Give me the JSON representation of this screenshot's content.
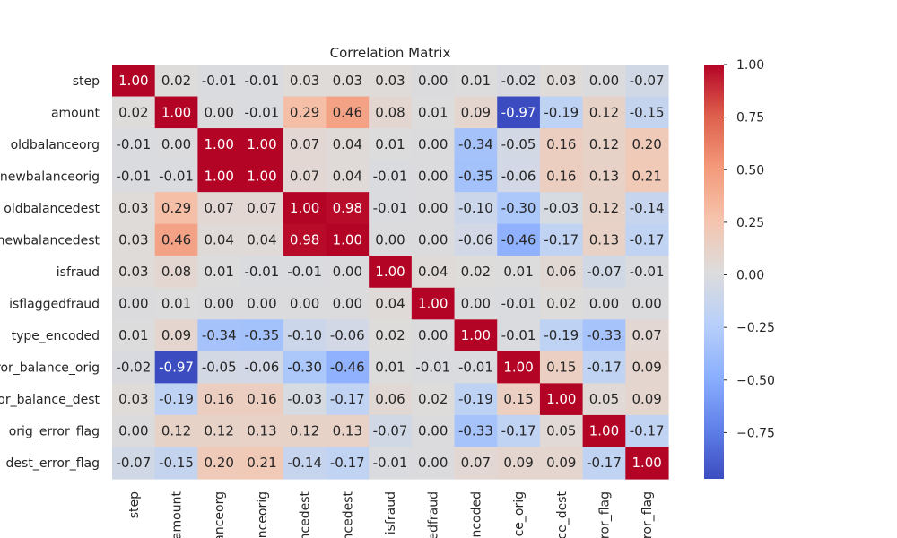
{
  "chart_data": {
    "type": "heatmap",
    "title": "Correlation Matrix",
    "colormap": "coolwarm",
    "vmin": -0.97,
    "vmax": 1.0,
    "row_labels": [
      "step",
      "amount",
      "oldbalanceorg",
      "newbalanceorig",
      "oldbalancedest",
      "newbalancedest",
      "isfraud",
      "isflaggedfraud",
      "type_encoded",
      "ror_balance_orig",
      "or_balance_dest",
      "orig_error_flag",
      "dest_error_flag"
    ],
    "col_labels": [
      "step",
      "amount",
      "lanceorg",
      "nceorig",
      "ncedest",
      "ncedest",
      "isfraud",
      "edfraud",
      "ncoded",
      "ce_orig",
      "ce_dest",
      "ror_flag",
      "ror_flag"
    ],
    "values": [
      [
        1.0,
        0.02,
        -0.01,
        -0.01,
        0.03,
        0.03,
        0.03,
        0.0,
        0.01,
        -0.02,
        0.03,
        0.0,
        -0.07
      ],
      [
        0.02,
        1.0,
        -0.0,
        -0.01,
        0.29,
        0.46,
        0.08,
        0.01,
        0.09,
        -0.97,
        -0.19,
        0.12,
        -0.15
      ],
      [
        -0.01,
        -0.0,
        1.0,
        1.0,
        0.07,
        0.04,
        0.01,
        0.0,
        -0.34,
        -0.05,
        0.16,
        0.12,
        0.2
      ],
      [
        -0.01,
        -0.01,
        1.0,
        1.0,
        0.07,
        0.04,
        -0.01,
        0.0,
        -0.35,
        -0.06,
        0.16,
        0.13,
        0.21
      ],
      [
        0.03,
        0.29,
        0.07,
        0.07,
        1.0,
        0.98,
        -0.01,
        -0.0,
        -0.1,
        -0.3,
        -0.03,
        0.12,
        -0.14
      ],
      [
        0.03,
        0.46,
        0.04,
        0.04,
        0.98,
        1.0,
        0.0,
        -0.0,
        -0.06,
        -0.46,
        -0.17,
        0.13,
        -0.17
      ],
      [
        0.03,
        0.08,
        0.01,
        -0.01,
        -0.01,
        0.0,
        1.0,
        0.04,
        0.02,
        0.01,
        0.06,
        -0.07,
        -0.01
      ],
      [
        0.0,
        0.01,
        0.0,
        0.0,
        -0.0,
        -0.0,
        0.04,
        1.0,
        0.0,
        -0.01,
        0.02,
        0.0,
        0.0
      ],
      [
        0.01,
        0.09,
        -0.34,
        -0.35,
        -0.1,
        -0.06,
        0.02,
        0.0,
        1.0,
        -0.01,
        -0.19,
        -0.33,
        0.07
      ],
      [
        -0.02,
        -0.97,
        -0.05,
        -0.06,
        -0.3,
        -0.46,
        0.01,
        -0.01,
        -0.01,
        1.0,
        0.15,
        -0.17,
        0.09
      ],
      [
        0.03,
        -0.19,
        0.16,
        0.16,
        -0.03,
        -0.17,
        0.06,
        0.02,
        -0.19,
        0.15,
        1.0,
        0.05,
        0.09
      ],
      [
        0.0,
        0.12,
        0.12,
        0.13,
        0.12,
        0.13,
        -0.07,
        0.0,
        -0.33,
        -0.17,
        0.05,
        1.0,
        -0.17
      ],
      [
        -0.07,
        -0.15,
        0.2,
        0.21,
        -0.14,
        -0.17,
        -0.01,
        0.0,
        0.07,
        0.09,
        0.09,
        -0.17,
        1.0
      ]
    ],
    "colorbar_ticks": [
      1.0,
      0.75,
      0.5,
      0.25,
      0.0,
      -0.25,
      -0.5,
      -0.75
    ],
    "colorbar_tick_labels": [
      "1.00",
      "0.75",
      "0.50",
      "0.25",
      "0.00",
      "−0.25",
      "−0.50",
      "−0.75"
    ]
  }
}
